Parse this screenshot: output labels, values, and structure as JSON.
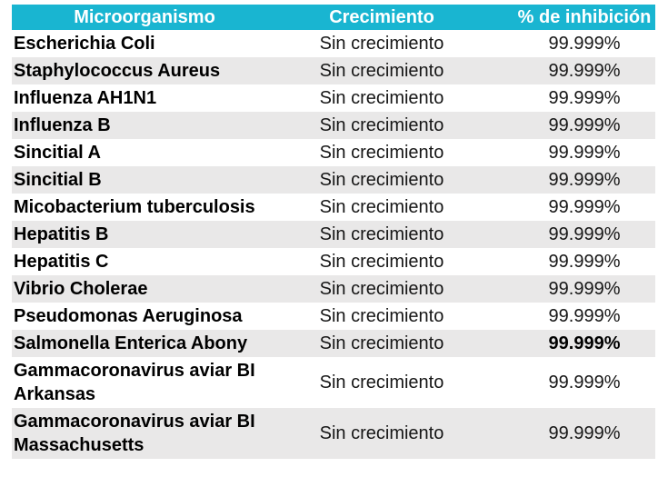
{
  "table": {
    "columns": [
      {
        "label": "Microorganismo"
      },
      {
        "label": "Crecimiento"
      },
      {
        "label": "% de inhibición"
      }
    ],
    "rows": [
      {
        "microorganismo": "Escherichia Coli",
        "crecimiento": "Sin crecimiento",
        "inhibicion": "99.999%"
      },
      {
        "microorganismo": "Staphylococcus Aureus",
        "crecimiento": "Sin crecimiento",
        "inhibicion": "99.999%"
      },
      {
        "microorganismo": "Influenza AH1N1",
        "crecimiento": "Sin crecimiento",
        "inhibicion": "99.999%"
      },
      {
        "microorganismo": "Influenza B",
        "crecimiento": "Sin crecimiento",
        "inhibicion": "99.999%"
      },
      {
        "microorganismo": "Sincitial A",
        "crecimiento": "Sin crecimiento",
        "inhibicion": "99.999%"
      },
      {
        "microorganismo": "Sincitial B",
        "crecimiento": "Sin crecimiento",
        "inhibicion": "99.999%"
      },
      {
        "microorganismo": "Micobacterium tuberculosis",
        "crecimiento": "Sin crecimiento",
        "inhibicion": "99.999%"
      },
      {
        "microorganismo": "Hepatitis B",
        "crecimiento": "Sin crecimiento",
        "inhibicion": "99.999%"
      },
      {
        "microorganismo": "Hepatitis C",
        "crecimiento": "Sin crecimiento",
        "inhibicion": "99.999%"
      },
      {
        "microorganismo": "Vibrio Cholerae",
        "crecimiento": "Sin crecimiento",
        "inhibicion": "99.999%"
      },
      {
        "microorganismo": "Pseudomonas Aeruginosa",
        "crecimiento": "Sin crecimiento",
        "inhibicion": "99.999%"
      },
      {
        "microorganismo": "Salmonella Enterica Abony",
        "crecimiento": "Sin crecimiento",
        "inhibicion": "99.999%",
        "inhibicion_bold": true
      },
      {
        "microorganismo": "Gammacoronavirus aviar BI Arkansas",
        "crecimiento": "Sin crecimiento",
        "inhibicion": "99.999%"
      },
      {
        "microorganismo": "Gammacoronavirus aviar BI Massachusetts",
        "crecimiento": "Sin crecimiento",
        "inhibicion": "99.999%"
      }
    ],
    "colors": {
      "header_bg": "#19b5d1",
      "header_text": "#ffffff",
      "stripe_bg": "#e9e8e8",
      "row_bg": "#ffffff",
      "body_text": "#161616"
    }
  }
}
